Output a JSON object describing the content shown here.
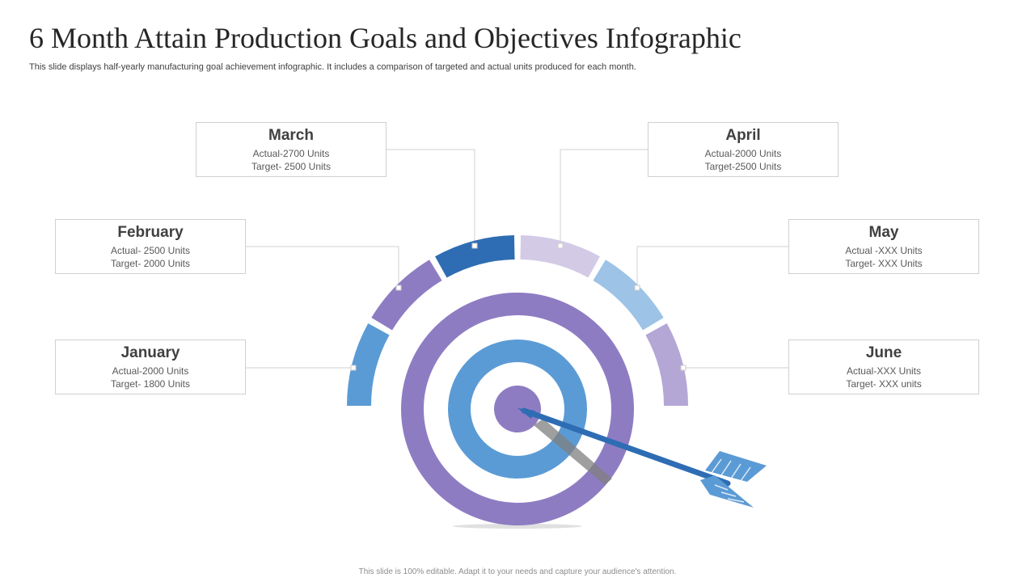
{
  "header": {
    "title": "6 Month Attain Production Goals and Objectives Infographic",
    "subtitle": "This slide displays half-yearly manufacturing goal achievement infographic. It includes a comparison of targeted and actual units produced for each month."
  },
  "months": {
    "january": {
      "name": "January",
      "actual": "Actual-2000 Units",
      "target": "Target-  1800 Units"
    },
    "february": {
      "name": "February",
      "actual": "Actual- 2500 Units",
      "target": "Target-  2000 Units"
    },
    "march": {
      "name": "March",
      "actual": "Actual-2700 Units",
      "target": "Target-  2500 Units"
    },
    "april": {
      "name": "April",
      "actual": "Actual-2000 Units",
      "target": "Target-2500  Units"
    },
    "may": {
      "name": "May",
      "actual": "Actual -XXX  Units",
      "target": "Target-  XXX  Units"
    },
    "june": {
      "name": "June",
      "actual": "Actual-XXX  Units",
      "target": "Target-  XXX  units"
    }
  },
  "colors": {
    "january": "#5b9bd5",
    "february": "#8e7cc3",
    "march": "#2e6db4",
    "april": "#d3cbe6",
    "may": "#9dc3e6",
    "june": "#b4a7d6",
    "target_outer": "#8e7cc3",
    "target_middle": "#5b9bd5",
    "arrow": "#2e6db4"
  },
  "footer": {
    "text": "This slide is 100% editable. Adapt it to your needs and capture your audience's attention."
  }
}
